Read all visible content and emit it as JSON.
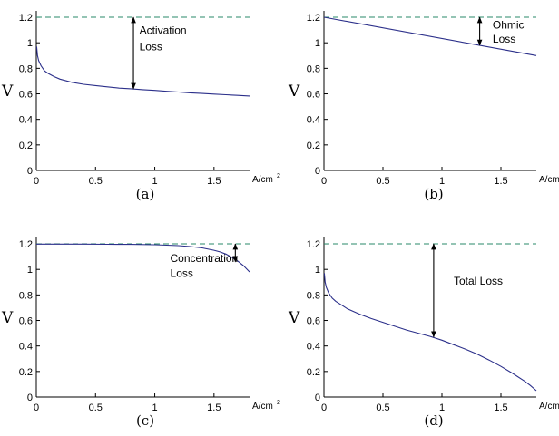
{
  "colors": {
    "curve": "#2b2f8a",
    "reference": "#2a8a6a",
    "axis": "#000000",
    "arrow": "#000000"
  },
  "chart_data": [
    {
      "type": "line",
      "caption": "(a)",
      "ylabel": "V",
      "xunit": "A/cm",
      "xunit_exp": "2",
      "xlim": [
        0,
        1.8
      ],
      "ylim": [
        0,
        1.25
      ],
      "xticks": [
        "0",
        "0.5",
        "1",
        "1.5"
      ],
      "yticks": [
        "0",
        "0.2",
        "0.4",
        "0.6",
        "0.8",
        "1",
        "1.2"
      ],
      "series": [
        {
          "style": "dashed",
          "x": [
            0,
            1.8
          ],
          "y": [
            1.2,
            1.2
          ]
        },
        {
          "style": "solid",
          "x": [
            0.003,
            0.01,
            0.02,
            0.04,
            0.07,
            0.1,
            0.15,
            0.2,
            0.3,
            0.4,
            0.5,
            0.6,
            0.7,
            0.8,
            0.9,
            1.0,
            1.1,
            1.2,
            1.3,
            1.4,
            1.5,
            1.6,
            1.7,
            1.8
          ],
          "y": [
            0.97,
            0.9,
            0.86,
            0.82,
            0.78,
            0.76,
            0.735,
            0.715,
            0.69,
            0.675,
            0.665,
            0.655,
            0.645,
            0.64,
            0.633,
            0.627,
            0.62,
            0.614,
            0.608,
            0.603,
            0.598,
            0.593,
            0.588,
            0.583
          ]
        }
      ],
      "annotation": {
        "lines": [
          "Activation",
          "Loss"
        ],
        "arrow_x": 0.82,
        "arrow_y": [
          1.2,
          0.64
        ],
        "text_x": 0.87,
        "text_y": [
          1.07,
          0.94
        ]
      }
    },
    {
      "type": "line",
      "caption": "(b)",
      "ylabel": "V",
      "xunit": "A/cm",
      "xunit_exp": "2",
      "xlim": [
        0,
        1.8
      ],
      "ylim": [
        0,
        1.25
      ],
      "xticks": [
        "0",
        "0.5",
        "1",
        "1.5"
      ],
      "yticks": [
        "0",
        "0.2",
        "0.4",
        "0.6",
        "0.8",
        "1",
        "1.2"
      ],
      "series": [
        {
          "style": "dashed",
          "x": [
            0,
            1.8
          ],
          "y": [
            1.2,
            1.2
          ]
        },
        {
          "style": "solid",
          "x": [
            0,
            1.8
          ],
          "y": [
            1.2,
            0.9
          ]
        }
      ],
      "annotation": {
        "lines": [
          "Ohmic",
          "Loss"
        ],
        "arrow_x": 1.32,
        "arrow_y": [
          1.2,
          0.98
        ],
        "text_x": 1.43,
        "text_y": [
          1.11,
          1.0
        ]
      }
    },
    {
      "type": "line",
      "caption": "(c)",
      "ylabel": "V",
      "xunit": "A/cm",
      "xunit_exp": "2",
      "xlim": [
        0,
        1.8
      ],
      "ylim": [
        0,
        1.25
      ],
      "xticks": [
        "0",
        "0.5",
        "1",
        "1.5"
      ],
      "yticks": [
        "0",
        "0.2",
        "0.4",
        "0.6",
        "0.8",
        "1",
        "1.2"
      ],
      "series": [
        {
          "style": "dashed",
          "x": [
            0,
            1.8
          ],
          "y": [
            1.2,
            1.2
          ]
        },
        {
          "style": "solid",
          "x": [
            0,
            0.2,
            0.4,
            0.6,
            0.8,
            1.0,
            1.2,
            1.3,
            1.4,
            1.5,
            1.55,
            1.6,
            1.65,
            1.7,
            1.75,
            1.8
          ],
          "y": [
            1.198,
            1.198,
            1.198,
            1.197,
            1.196,
            1.193,
            1.186,
            1.179,
            1.168,
            1.15,
            1.137,
            1.12,
            1.095,
            1.065,
            1.028,
            0.98
          ]
        }
      ],
      "annotation": {
        "lines": [
          "Concentration",
          "Loss"
        ],
        "arrow_x": 1.68,
        "arrow_y": [
          1.2,
          1.06
        ],
        "text_x": 1.13,
        "text_y": [
          1.06,
          0.94
        ]
      }
    },
    {
      "type": "line",
      "caption": "(d)",
      "ylabel": "V",
      "xunit": "A/cm",
      "xunit_exp": "2",
      "xlim": [
        0,
        1.8
      ],
      "ylim": [
        0,
        1.25
      ],
      "xticks": [
        "0",
        "0.5",
        "1",
        "1.5"
      ],
      "yticks": [
        "0",
        "0.2",
        "0.4",
        "0.6",
        "0.8",
        "1",
        "1.2"
      ],
      "series": [
        {
          "style": "dashed",
          "x": [
            0,
            1.8
          ],
          "y": [
            1.2,
            1.2
          ]
        },
        {
          "style": "solid",
          "x": [
            0.003,
            0.01,
            0.02,
            0.04,
            0.07,
            0.1,
            0.15,
            0.2,
            0.3,
            0.4,
            0.5,
            0.6,
            0.7,
            0.8,
            0.9,
            1.0,
            1.1,
            1.2,
            1.3,
            1.4,
            1.5,
            1.6,
            1.7,
            1.75,
            1.8
          ],
          "y": [
            0.97,
            0.9,
            0.86,
            0.815,
            0.775,
            0.75,
            0.72,
            0.69,
            0.65,
            0.615,
            0.585,
            0.555,
            0.525,
            0.5,
            0.475,
            0.445,
            0.41,
            0.375,
            0.335,
            0.29,
            0.24,
            0.185,
            0.125,
            0.09,
            0.05
          ]
        }
      ],
      "annotation": {
        "lines": [
          "Total Loss"
        ],
        "arrow_x": 0.93,
        "arrow_y": [
          1.2,
          0.47
        ],
        "text_x": 1.1,
        "text_y": [
          0.88
        ]
      }
    }
  ]
}
